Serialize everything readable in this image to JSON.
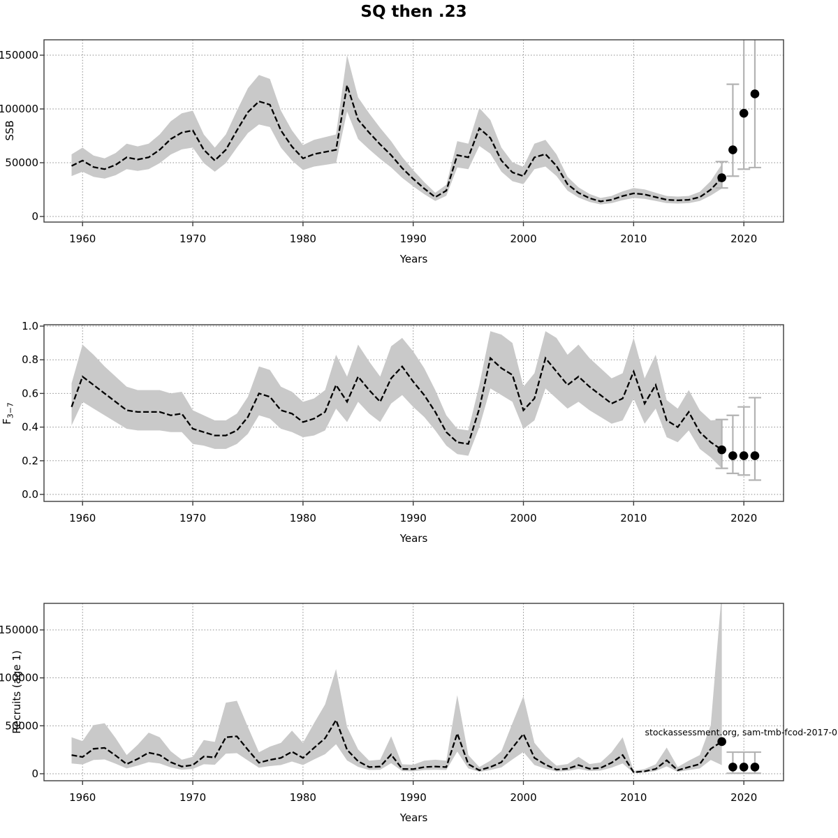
{
  "title": "SQ then .23",
  "annotation": "stockassessment.org, sam-tmb-fcod-2017-0",
  "colors": {
    "band": "#c9c9c9",
    "line": "#000000",
    "errorbar": "#b3b3b3",
    "dot": "#000000",
    "grid": "#8a8a8a",
    "frame": "#3c3c3c",
    "text": "#000000"
  },
  "chart_data": [
    {
      "type": "line",
      "name": "ssb-panel",
      "ylabel": "SSB",
      "ylabel_sub": "",
      "xlabel": "Years",
      "x_start": 1959,
      "x_end": 2018,
      "xlim": [
        1956.5,
        2023.6
      ],
      "ylim": [
        -5200,
        164300
      ],
      "xticks": [
        1960,
        1970,
        1980,
        1990,
        2000,
        2010,
        2020
      ],
      "yticks": [
        0,
        50000,
        100000,
        150000
      ],
      "ytick_labels": [
        "0",
        "50000",
        "100000",
        "150000"
      ],
      "grid": true,
      "series": {
        "center": [
          47000,
          52000,
          46000,
          44000,
          48000,
          55000,
          53000,
          55000,
          62000,
          72000,
          78000,
          80000,
          62000,
          52000,
          62000,
          80000,
          97000,
          107000,
          104000,
          80000,
          65000,
          54000,
          58000,
          60000,
          62000,
          122000,
          90000,
          78000,
          67000,
          57000,
          45000,
          35000,
          26000,
          18000,
          24000,
          57000,
          55000,
          82000,
          73000,
          52000,
          41000,
          37500,
          55000,
          58000,
          47000,
          30000,
          22000,
          17000,
          14000,
          15500,
          19000,
          21500,
          20500,
          18000,
          15500,
          15000,
          15500,
          18000,
          25000,
          36000
        ],
        "lo": [
          37600,
          41600,
          36800,
          35200,
          38400,
          44000,
          42400,
          44000,
          49600,
          57600,
          62400,
          64000,
          49600,
          41600,
          49600,
          64000,
          77600,
          85600,
          83200,
          64000,
          52000,
          43200,
          46400,
          48000,
          49600,
          97600,
          72000,
          62400,
          53600,
          45600,
          36000,
          28000,
          20800,
          14400,
          19200,
          45600,
          44000,
          65600,
          58400,
          41600,
          32800,
          30000,
          44000,
          46400,
          37600,
          24000,
          17600,
          13600,
          11200,
          12400,
          15200,
          17200,
          16400,
          14400,
          12400,
          12000,
          12400,
          14500,
          19500,
          26000
        ],
        "hi": [
          57800,
          64000,
          56600,
          54100,
          59000,
          67700,
          65200,
          67700,
          76300,
          88600,
          95900,
          98400,
          76300,
          64000,
          76300,
          98400,
          119300,
          131600,
          127900,
          98400,
          80000,
          66400,
          71300,
          73800,
          76300,
          150100,
          110700,
          95900,
          82400,
          70100,
          55400,
          43100,
          32000,
          22100,
          29500,
          70100,
          67700,
          100900,
          89800,
          64000,
          50400,
          46100,
          67700,
          71300,
          57800,
          36900,
          27100,
          20900,
          17200,
          19100,
          23400,
          26400,
          25200,
          22100,
          19100,
          18500,
          19100,
          23000,
          33000,
          48500
        ]
      },
      "forecast": {
        "years": [
          2018,
          2019,
          2020,
          2021
        ],
        "values": [
          36000,
          62000,
          96000,
          114000
        ],
        "bars": [
          [
            26500,
            51000
          ],
          [
            37500,
            123000
          ],
          [
            44000,
            200000
          ],
          [
            45500,
            200000
          ]
        ]
      }
    },
    {
      "type": "line",
      "name": "f-panel",
      "ylabel": "F",
      "ylabel_sub": "3−7",
      "xlabel": "Years",
      "x_start": 1959,
      "x_end": 2018,
      "xlim": [
        1956.5,
        2023.6
      ],
      "ylim": [
        -0.0415,
        1.0083
      ],
      "xticks": [
        1960,
        1970,
        1980,
        1990,
        2000,
        2010,
        2020
      ],
      "yticks": [
        0.0,
        0.2,
        0.4,
        0.6,
        0.8,
        1.0
      ],
      "ytick_labels": [
        "0.0",
        "0.2",
        "0.4",
        "0.6",
        "0.8",
        "1.0"
      ],
      "grid": true,
      "series": {
        "center": [
          0.52,
          0.7,
          0.65,
          0.6,
          0.55,
          0.5,
          0.49,
          0.49,
          0.49,
          0.47,
          0.48,
          0.39,
          0.37,
          0.35,
          0.35,
          0.38,
          0.46,
          0.6,
          0.58,
          0.5,
          0.48,
          0.43,
          0.45,
          0.49,
          0.65,
          0.55,
          0.7,
          0.62,
          0.55,
          0.69,
          0.76,
          0.67,
          0.59,
          0.49,
          0.37,
          0.31,
          0.3,
          0.51,
          0.81,
          0.75,
          0.71,
          0.5,
          0.57,
          0.81,
          0.73,
          0.65,
          0.7,
          0.64,
          0.59,
          0.54,
          0.57,
          0.73,
          0.54,
          0.65,
          0.44,
          0.4,
          0.49,
          0.37,
          0.31,
          0.265
        ],
        "lo": [
          0.41,
          0.55,
          0.51,
          0.47,
          0.43,
          0.39,
          0.38,
          0.38,
          0.38,
          0.37,
          0.37,
          0.3,
          0.29,
          0.27,
          0.27,
          0.3,
          0.36,
          0.47,
          0.45,
          0.39,
          0.37,
          0.34,
          0.35,
          0.38,
          0.51,
          0.43,
          0.55,
          0.48,
          0.43,
          0.54,
          0.59,
          0.52,
          0.46,
          0.38,
          0.29,
          0.24,
          0.23,
          0.4,
          0.63,
          0.59,
          0.55,
          0.39,
          0.44,
          0.63,
          0.57,
          0.51,
          0.55,
          0.5,
          0.46,
          0.42,
          0.44,
          0.57,
          0.42,
          0.51,
          0.34,
          0.31,
          0.38,
          0.27,
          0.22,
          0.155
        ],
        "hi": [
          0.66,
          0.89,
          0.83,
          0.76,
          0.7,
          0.64,
          0.62,
          0.62,
          0.62,
          0.6,
          0.61,
          0.5,
          0.47,
          0.44,
          0.44,
          0.48,
          0.58,
          0.76,
          0.74,
          0.64,
          0.61,
          0.55,
          0.57,
          0.62,
          0.83,
          0.7,
          0.89,
          0.79,
          0.7,
          0.88,
          0.93,
          0.85,
          0.75,
          0.62,
          0.47,
          0.39,
          0.38,
          0.65,
          0.97,
          0.95,
          0.9,
          0.64,
          0.72,
          0.97,
          0.93,
          0.83,
          0.89,
          0.81,
          0.75,
          0.69,
          0.72,
          0.93,
          0.69,
          0.83,
          0.56,
          0.51,
          0.62,
          0.5,
          0.44,
          0.445
        ]
      },
      "forecast": {
        "years": [
          2018,
          2019,
          2020,
          2021
        ],
        "values": [
          0.265,
          0.23,
          0.23,
          0.23
        ],
        "bars": [
          [
            0.155,
            0.445
          ],
          [
            0.125,
            0.47
          ],
          [
            0.115,
            0.52
          ],
          [
            0.085,
            0.575
          ]
        ]
      }
    },
    {
      "type": "line",
      "name": "recruits-panel",
      "ylabel": "Recruits (age 1)",
      "ylabel_sub": "",
      "xlabel": "Years",
      "x_start": 1959,
      "x_end": 2018,
      "xlim": [
        1956.5,
        2023.6
      ],
      "ylim": [
        -7300,
        177700
      ],
      "xticks": [
        1960,
        1970,
        1980,
        1990,
        2000,
        2010,
        2020
      ],
      "yticks": [
        0,
        50000,
        100000,
        150000
      ],
      "ytick_labels": [
        "0",
        "50000",
        "100000",
        "150000"
      ],
      "grid": true,
      "series": {
        "center": [
          19500,
          17500,
          26000,
          27000,
          19000,
          10000,
          15500,
          22000,
          19500,
          12000,
          7500,
          9000,
          18000,
          17000,
          38000,
          39000,
          25000,
          11500,
          14500,
          16500,
          23000,
          16500,
          27000,
          37000,
          56000,
          25000,
          13000,
          7000,
          7500,
          20000,
          5000,
          4800,
          7000,
          7500,
          7000,
          42000,
          10000,
          3600,
          7000,
          12000,
          27000,
          41500,
          16500,
          9500,
          4300,
          5200,
          9000,
          5200,
          6000,
          11500,
          19500,
          1500,
          2500,
          5000,
          14000,
          3600,
          7000,
          10000,
          26000,
          33500
        ],
        "lo": [
          10700,
          9600,
          14300,
          14900,
          10500,
          5500,
          8500,
          12100,
          10700,
          6600,
          4100,
          5000,
          9900,
          9400,
          20900,
          21500,
          13800,
          6300,
          8000,
          9100,
          12700,
          9100,
          14900,
          20400,
          30800,
          13800,
          7200,
          3900,
          4100,
          11000,
          2800,
          2600,
          3900,
          4100,
          3900,
          23100,
          5500,
          2000,
          3900,
          6600,
          14900,
          22800,
          9100,
          5200,
          2400,
          2900,
          5000,
          2900,
          3300,
          6300,
          10700,
          800,
          1400,
          2800,
          7700,
          2000,
          3900,
          5500,
          14300,
          9000
        ],
        "hi": [
          38000,
          34100,
          50700,
          52700,
          37100,
          19500,
          30200,
          42900,
          38000,
          23400,
          14600,
          17600,
          35100,
          33200,
          74100,
          76100,
          48800,
          22400,
          28300,
          32200,
          44900,
          32200,
          52700,
          72200,
          109200,
          48800,
          25400,
          13700,
          14600,
          39000,
          9800,
          9400,
          13700,
          14600,
          13700,
          81900,
          19500,
          7000,
          13700,
          23400,
          52700,
          80900,
          32200,
          18500,
          8400,
          10100,
          17600,
          10100,
          11700,
          22400,
          38000,
          2900,
          4900,
          9800,
          27300,
          7000,
          13700,
          19500,
          50700,
          190000
        ]
      },
      "forecast": {
        "years": [
          2018,
          2019,
          2020,
          2021
        ],
        "values": [
          33500,
          7000,
          7000,
          7000
        ],
        "bars": [
          null,
          [
            500,
            22500
          ],
          [
            500,
            22500
          ],
          [
            500,
            22500
          ]
        ]
      }
    }
  ]
}
